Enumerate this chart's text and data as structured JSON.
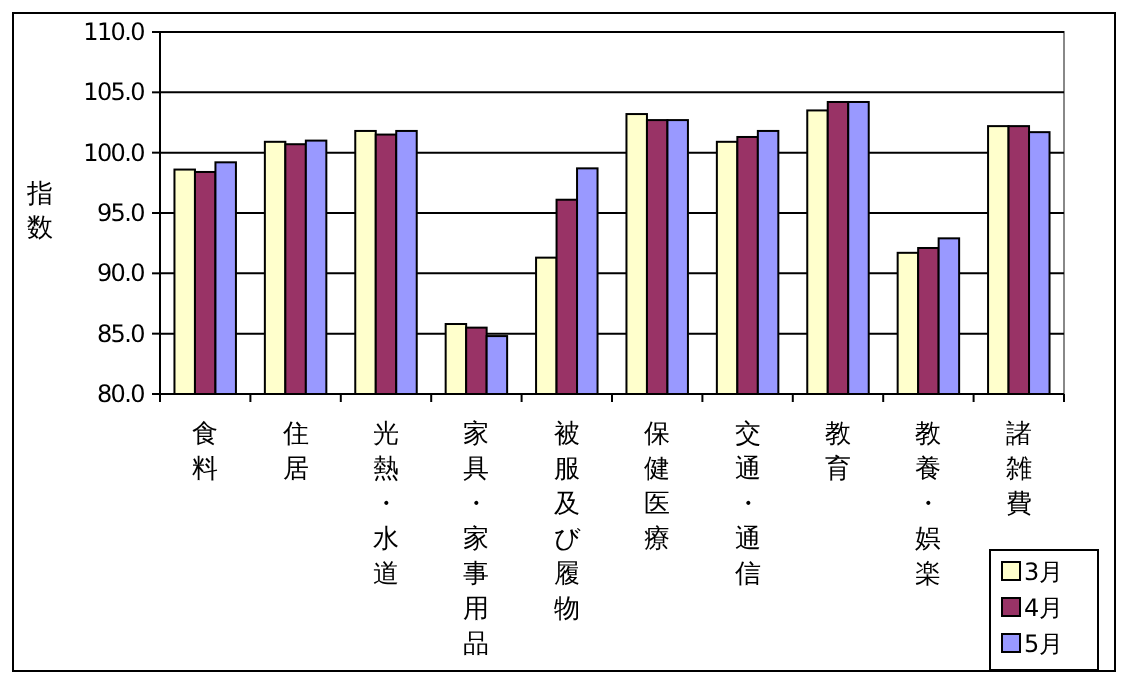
{
  "chart_data": {
    "type": "bar",
    "ylabel": "指数",
    "categories": [
      "食料",
      "住居",
      "光熱・水道",
      "家具・家事用品",
      "被服及び履物",
      "保健医療",
      "交通・通信",
      "教育",
      "教養・娯楽",
      "諸雑費"
    ],
    "series": [
      {
        "name": "3月",
        "color": "#ffffcc",
        "values": [
          98.6,
          100.9,
          101.8,
          85.8,
          91.3,
          103.2,
          100.9,
          103.5,
          91.7,
          102.2
        ]
      },
      {
        "name": "4月",
        "color": "#993366",
        "values": [
          98.4,
          100.7,
          101.5,
          85.5,
          96.1,
          102.7,
          101.3,
          104.2,
          92.1,
          102.2
        ]
      },
      {
        "name": "5月",
        "color": "#9999ff",
        "values": [
          99.2,
          101.0,
          101.8,
          84.8,
          98.7,
          102.7,
          101.8,
          104.2,
          92.9,
          101.7
        ]
      }
    ],
    "ylim": [
      80,
      110
    ],
    "yticks": [
      {
        "value": 80,
        "label": "80.0"
      },
      {
        "value": 85,
        "label": "85.0"
      },
      {
        "value": 90,
        "label": "90.0"
      },
      {
        "value": 95,
        "label": "95.0"
      },
      {
        "value": 100,
        "label": "100.0"
      },
      {
        "value": 105,
        "label": "105.0"
      },
      {
        "value": 110,
        "label": "110.0"
      }
    ],
    "grid": "y",
    "legend": "bottom right"
  }
}
